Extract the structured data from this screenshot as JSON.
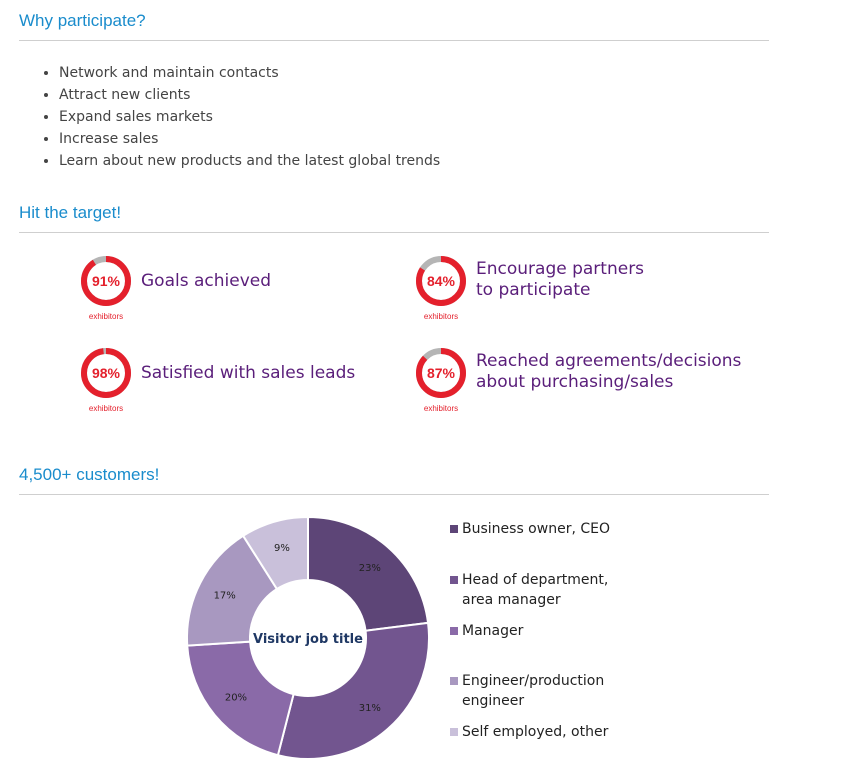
{
  "sections": {
    "why": {
      "title": "Why participate?"
    },
    "target": {
      "title": "Hit the target!"
    },
    "customers": {
      "title": "4,500+ customers!"
    }
  },
  "bullets": [
    "Network and maintain contacts",
    "Attract new clients",
    "Expand sales markets",
    "Increase sales",
    "Learn about new products and the latest global trends"
  ],
  "stats": [
    {
      "percent_label": "91%",
      "value": 91,
      "sublabel": "exhibitors",
      "label_lines": [
        "Goals achieved"
      ]
    },
    {
      "percent_label": "84%",
      "value": 84,
      "sublabel": "exhibitors",
      "label_lines": [
        "Encourage partners",
        "to participate"
      ]
    },
    {
      "percent_label": "98%",
      "value": 98,
      "sublabel": "exhibitors",
      "label_lines": [
        "Satisfied with sales leads"
      ]
    },
    {
      "percent_label": "87%",
      "value": 87,
      "sublabel": "exhibitors",
      "label_lines": [
        "Reached agreements/decisions",
        "about purchasing/sales"
      ]
    }
  ],
  "colors": {
    "accent_blue": "#1a8ccc",
    "stat_red": "#e4202c",
    "stat_gray": "#b5b5b5",
    "stat_label_purple": "#5a1e7a"
  },
  "chart_data": {
    "type": "pie",
    "title": "Visitor job title",
    "legend_position": "right",
    "categories": [
      "Business owner, CEO",
      "Head of department, area manager",
      "Manager",
      "Engineer/production engineer",
      "Self employed, other"
    ],
    "legend_lines": [
      [
        "Business owner, CEO"
      ],
      [
        "Head of department,",
        "area manager"
      ],
      [
        "Manager"
      ],
      [
        "Engineer/production",
        "engineer"
      ],
      [
        "Self employed, other"
      ]
    ],
    "slices": [
      {
        "label": "23%",
        "value": 23,
        "color": "#5d4577"
      },
      {
        "label": "31%",
        "value": 31,
        "color": "#72558f"
      },
      {
        "label": "20%",
        "value": 20,
        "color": "#8a6aa8"
      },
      {
        "label": "17%",
        "value": 17,
        "color": "#a898c0"
      },
      {
        "label": "9%",
        "value": 9,
        "color": "#c9c0da"
      }
    ]
  }
}
